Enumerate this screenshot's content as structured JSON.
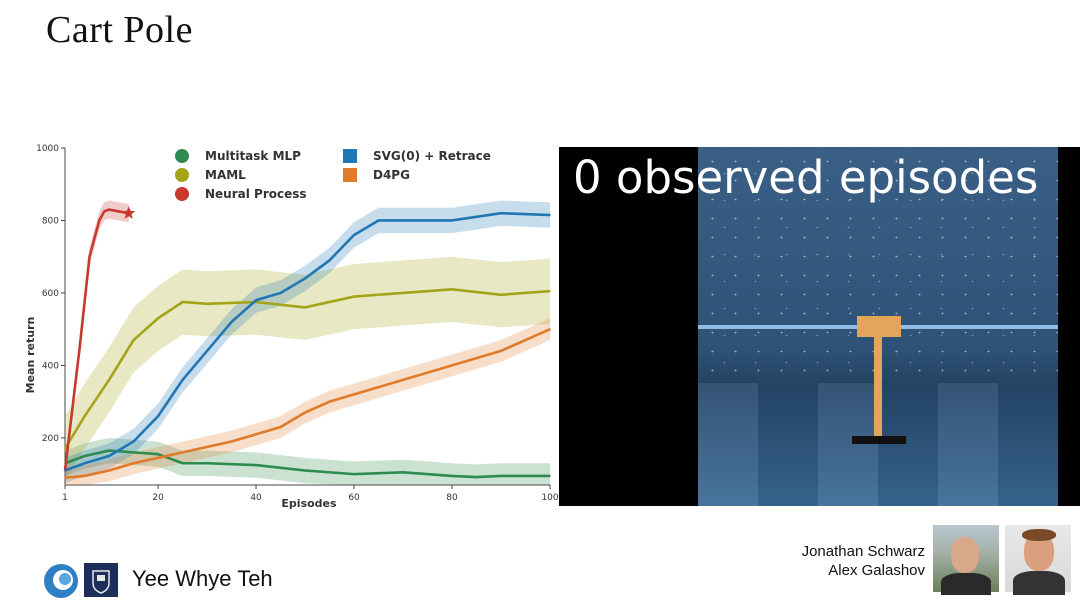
{
  "slide": {
    "title": "Cart Pole",
    "presenter": "Yee Whye Teh",
    "authors": [
      "Jonathan Schwarz",
      "Alex Galashov"
    ]
  },
  "video": {
    "overlay_text": "0 observed episodes"
  },
  "colors": {
    "multitask": "#2e8b4f",
    "maml": "#a4a419",
    "np": "#c9382d",
    "svg": "#1f77b4",
    "d4pg": "#e07b2a"
  },
  "chart_data": {
    "type": "line",
    "title": "",
    "xlabel": "Episodes",
    "ylabel": "Mean return",
    "xlim": [
      1,
      100
    ],
    "ylim": [
      70,
      1000
    ],
    "xticks": [
      1,
      20,
      40,
      60,
      80,
      100
    ],
    "yticks": [
      200,
      400,
      600,
      800,
      1000
    ],
    "legend": [
      "Multitask MLP",
      "MAML",
      "Neural Process",
      "SVG(0) + Retrace",
      "D4PG"
    ],
    "series": [
      {
        "name": "Multitask MLP",
        "key": "multitask",
        "x": [
          1,
          5,
          10,
          15,
          20,
          25,
          30,
          40,
          50,
          60,
          70,
          80,
          85,
          90,
          100
        ],
        "y": [
          130,
          150,
          165,
          160,
          155,
          130,
          130,
          125,
          110,
          100,
          105,
          95,
          92,
          95,
          95
        ],
        "band": 35
      },
      {
        "name": "MAML",
        "key": "maml",
        "x": [
          1,
          5,
          10,
          15,
          20,
          25,
          30,
          40,
          50,
          60,
          70,
          80,
          90,
          100
        ],
        "y": [
          170,
          260,
          360,
          470,
          530,
          575,
          570,
          575,
          560,
          590,
          600,
          610,
          595,
          605
        ],
        "band": 90
      },
      {
        "name": "Neural Process",
        "key": "np",
        "x": [
          1,
          4,
          6,
          8,
          9,
          10,
          12,
          14
        ],
        "y": [
          110,
          450,
          700,
          800,
          825,
          830,
          825,
          820
        ],
        "band": 25
      },
      {
        "name": "SVG(0) + Retrace",
        "key": "svg",
        "x": [
          1,
          5,
          10,
          15,
          20,
          25,
          30,
          35,
          40,
          45,
          50,
          55,
          60,
          65,
          70,
          80,
          90,
          100
        ],
        "y": [
          110,
          130,
          150,
          190,
          260,
          360,
          440,
          520,
          580,
          600,
          640,
          690,
          760,
          800,
          800,
          800,
          820,
          815
        ],
        "band": 35
      },
      {
        "name": "D4PG",
        "key": "d4pg",
        "x": [
          1,
          5,
          10,
          15,
          20,
          25,
          30,
          35,
          40,
          45,
          50,
          55,
          60,
          65,
          70,
          80,
          90,
          100
        ],
        "y": [
          90,
          95,
          110,
          130,
          145,
          160,
          175,
          190,
          210,
          230,
          270,
          300,
          320,
          340,
          360,
          400,
          440,
          500
        ],
        "band": 30
      }
    ]
  }
}
